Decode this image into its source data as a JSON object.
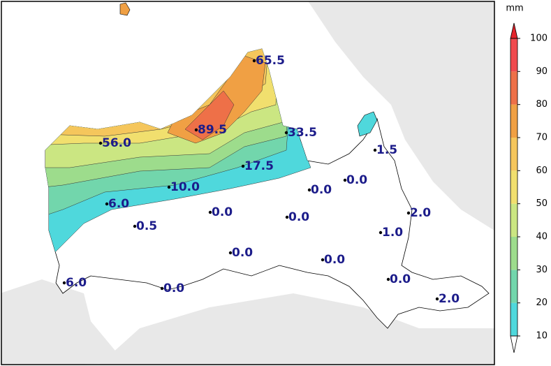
{
  "unit": "mm",
  "colorbar": {
    "ticks": [
      10,
      20,
      30,
      40,
      50,
      60,
      70,
      80,
      90,
      100
    ],
    "colors": [
      "#4fd8dc",
      "#72d6ac",
      "#9ddc8c",
      "#cbe682",
      "#f1df6e",
      "#f5c65c",
      "#f0a044",
      "#ee7048",
      "#f04a4e"
    ],
    "over_color": "#e3232a",
    "under_color": "#ffffff"
  },
  "stations": [
    "65.5",
    "89.5",
    "33.5",
    "56.0",
    "17.5",
    "10.0",
    "1.5",
    "0.0",
    "0.0",
    "6.0",
    "0.0",
    "2.0",
    "0.0",
    "0.5",
    "1.0",
    "0.0",
    "0.0",
    "6.0",
    "0.0",
    "0.0",
    "2.0"
  ]
}
